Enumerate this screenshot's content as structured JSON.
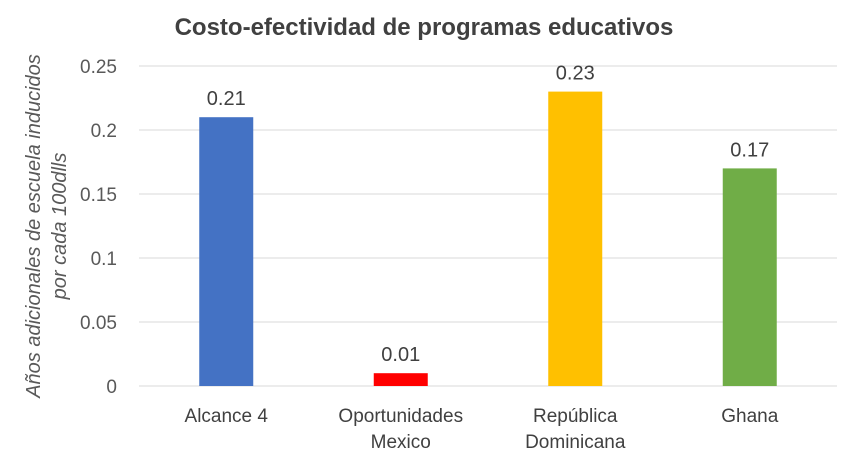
{
  "chart_data": {
    "type": "bar",
    "title": "Costo-efectividad de programas educativos",
    "ylabel_lines": [
      "Años adicionales de escuela inducidos",
      "por cada 100dlls"
    ],
    "xlabel": "",
    "ylim": [
      0,
      0.25
    ],
    "yticks": [
      "0",
      "0.05",
      "0.1",
      "0.15",
      "0.2",
      "0.25"
    ],
    "grid": true,
    "categories": [
      {
        "lines": [
          "Alcance 4"
        ]
      },
      {
        "lines": [
          "Oportunidades",
          "Mexico"
        ]
      },
      {
        "lines": [
          "República",
          "Dominicana"
        ]
      },
      {
        "lines": [
          "Ghana"
        ]
      }
    ],
    "values": [
      0.21,
      0.01,
      0.23,
      0.17
    ],
    "data_labels": [
      "0.21",
      "0.01",
      "0.23",
      "0.17"
    ],
    "colors": [
      "#4472c4",
      "#ff0000",
      "#ffc000",
      "#70ad47"
    ]
  }
}
